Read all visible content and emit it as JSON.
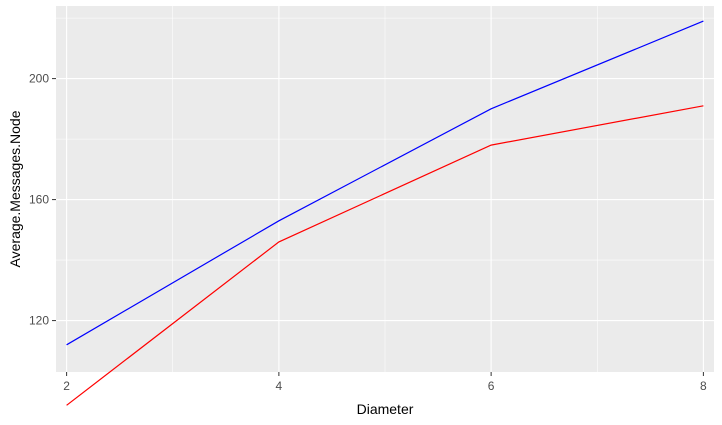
{
  "chart_data": {
    "type": "line",
    "title": "",
    "xlabel": "Diameter",
    "ylabel": "Average.Messages.Node",
    "x": [
      2,
      4,
      6,
      8
    ],
    "xticks": [
      2,
      4,
      6,
      8
    ],
    "yticks": [
      120,
      160,
      200
    ],
    "xlim": [
      1.9,
      8.1
    ],
    "ylim": [
      103,
      224
    ],
    "grid": true,
    "legend": "none",
    "series": [
      {
        "color": "#0000ff",
        "values": [
          112,
          153,
          190,
          219
        ]
      },
      {
        "color": "#ff0000",
        "values": [
          92,
          146,
          178,
          191
        ]
      }
    ]
  }
}
